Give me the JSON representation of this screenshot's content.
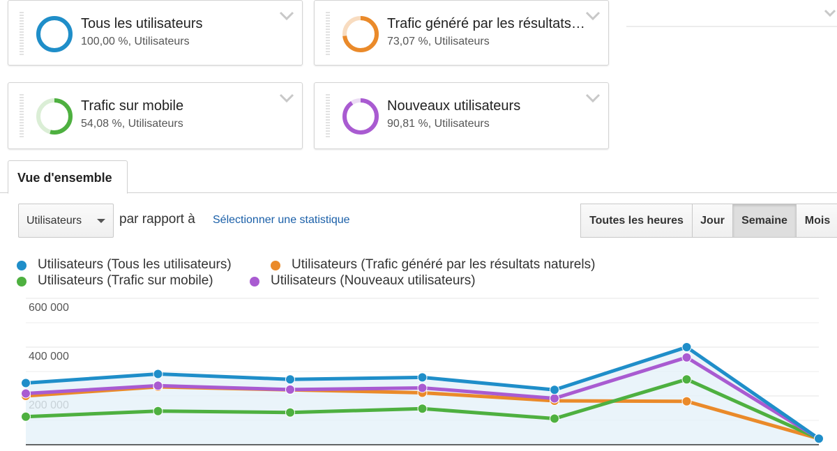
{
  "segments": [
    {
      "title": "Tous les utilisateurs",
      "subtitle": "100,00 %, Utilisateurs",
      "percent": 100.0,
      "color": "#1f8ec9"
    },
    {
      "title": "Trafic généré par les résultats naturels",
      "subtitle": "73,07 %, Utilisateurs",
      "percent": 73.07,
      "color": "#ea8a2a"
    },
    {
      "title": "Trafic sur mobile",
      "subtitle": "54,08 %, Utilisateurs",
      "percent": 54.08,
      "color": "#4eb040"
    },
    {
      "title": "Nouveaux utilisateurs",
      "subtitle": "90,81 %, Utilisateurs",
      "percent": 90.81,
      "color": "#a95bd1"
    }
  ],
  "tab": {
    "label": "Vue d'ensemble"
  },
  "metric_select": {
    "value": "Utilisateurs"
  },
  "compare": {
    "text": "par rapport à",
    "link": "Sélectionner une statistique"
  },
  "granularity": {
    "options": [
      "Toutes les heures",
      "Jour",
      "Semaine",
      "Mois"
    ],
    "active": "Semaine"
  },
  "chart_data": {
    "type": "line",
    "ylim": [
      0,
      600000
    ],
    "yticks": [
      {
        "value": 200000,
        "label": "200 000"
      },
      {
        "value": 400000,
        "label": "400 000"
      },
      {
        "value": 600000,
        "label": "600 000"
      }
    ],
    "x": [
      1,
      2,
      3,
      4,
      5,
      6,
      7
    ],
    "series": [
      {
        "name": "Utilisateurs (Tous les utilisateurs)",
        "color": "#1f8ec9",
        "values": [
          253000,
          290000,
          268000,
          276000,
          225000,
          400000,
          25000
        ]
      },
      {
        "name": "Utilisateurs (Trafic généré par les résultats naturels)",
        "color": "#ea8a2a",
        "values": [
          200000,
          237000,
          225000,
          213000,
          180000,
          178000,
          25000
        ]
      },
      {
        "name": "Utilisateurs (Trafic sur mobile)",
        "color": "#4eb040",
        "values": [
          115000,
          138000,
          132000,
          148000,
          107000,
          268000,
          25000
        ]
      },
      {
        "name": "Utilisateurs (Nouveaux utilisateurs)",
        "color": "#a95bd1",
        "values": [
          210000,
          242000,
          226000,
          233000,
          190000,
          358000,
          25000
        ]
      }
    ]
  }
}
